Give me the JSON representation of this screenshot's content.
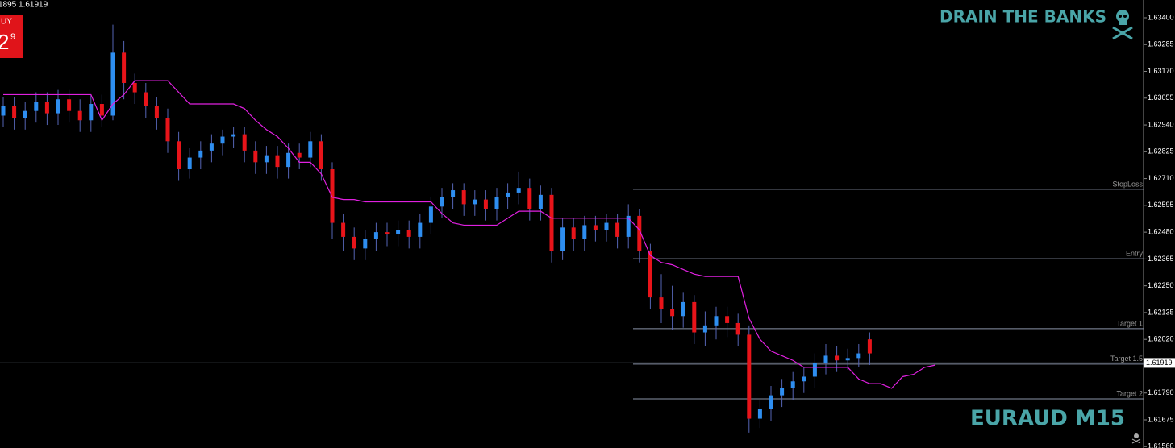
{
  "header": {
    "info": "1895 1.61919",
    "button_label": "UY",
    "button_price": "2",
    "button_sup": "9",
    "brand": "DRAIN THE BANKS",
    "symbol": "EURAUD M15"
  },
  "chart_data": {
    "type": "candlestick",
    "ylim": [
      1.61554,
      1.63476
    ],
    "yticks": [
      {
        "value": 1.634,
        "label": "1.63400"
      },
      {
        "value": 1.63285,
        "label": "1.63285"
      },
      {
        "value": 1.6317,
        "label": "1.63170"
      },
      {
        "value": 1.63055,
        "label": "1.63055"
      },
      {
        "value": 1.6294,
        "label": "1.62940"
      },
      {
        "value": 1.62825,
        "label": "1.62825"
      },
      {
        "value": 1.6271,
        "label": "1.62710"
      },
      {
        "value": 1.62595,
        "label": "1.62595"
      },
      {
        "value": 1.6248,
        "label": "1.62480"
      },
      {
        "value": 1.62365,
        "label": "1.62365"
      },
      {
        "value": 1.6225,
        "label": "1.62250"
      },
      {
        "value": 1.62135,
        "label": "1.62135"
      },
      {
        "value": 1.6202,
        "label": "1.62020"
      },
      {
        "value": 1.6179,
        "label": "1.61790"
      },
      {
        "value": 1.61675,
        "label": "1.61675"
      },
      {
        "value": 1.6156,
        "label": "1.61560"
      }
    ],
    "up_color": "#2e8ef0",
    "down_color": "#e8141a",
    "wick_color": "#5565b5",
    "open": [
      1.6298,
      1.6302,
      1.6297,
      1.63,
      1.6304,
      1.6299,
      1.6305,
      1.63,
      1.6296,
      1.6303,
      1.6298,
      1.6325,
      1.6312,
      1.6308,
      1.6302,
      1.6297,
      1.6287,
      1.6275,
      1.628,
      1.6283,
      1.6286,
      1.6289,
      1.629,
      1.6283,
      1.6278,
      1.6281,
      1.6276,
      1.6282,
      1.628,
      1.6287,
      1.6275,
      1.6252,
      1.6246,
      1.6241,
      1.6245,
      1.6248,
      1.6247,
      1.6249,
      1.6246,
      1.6252,
      1.6259,
      1.6263,
      1.6266,
      1.626,
      1.6262,
      1.6258,
      1.6263,
      1.6265,
      1.6267,
      1.6258,
      1.6264,
      1.624,
      1.625,
      1.6245,
      1.6251,
      1.6249,
      1.6252,
      1.6246,
      1.6255,
      1.624,
      1.622,
      1.6215,
      1.6212,
      1.6218,
      1.6205,
      1.6208,
      1.6212,
      1.6209,
      1.6204,
      1.6168,
      1.6172,
      1.6178,
      1.6181,
      1.6184,
      1.6186,
      1.6192,
      1.6195,
      1.6193,
      1.6194,
      1.6202
    ],
    "high": [
      1.6306,
      1.6306,
      1.6304,
      1.6308,
      1.6308,
      1.6309,
      1.6309,
      1.6305,
      1.6307,
      1.6307,
      1.6337,
      1.633,
      1.6316,
      1.6312,
      1.6306,
      1.6301,
      1.6291,
      1.6284,
      1.6287,
      1.629,
      1.6292,
      1.6293,
      1.6293,
      1.6287,
      1.6285,
      1.6285,
      1.6286,
      1.6286,
      1.6291,
      1.629,
      1.6278,
      1.6256,
      1.625,
      1.6249,
      1.6252,
      1.6252,
      1.6253,
      1.6253,
      1.6256,
      1.6263,
      1.6267,
      1.6269,
      1.6269,
      1.6266,
      1.6266,
      1.6267,
      1.6269,
      1.6274,
      1.6271,
      1.6268,
      1.6267,
      1.6254,
      1.6254,
      1.6255,
      1.6255,
      1.6256,
      1.6256,
      1.626,
      1.6258,
      1.6243,
      1.623,
      1.6225,
      1.6222,
      1.6221,
      1.6214,
      1.6216,
      1.6216,
      1.6213,
      1.6208,
      1.6176,
      1.6182,
      1.6185,
      1.6188,
      1.619,
      1.6196,
      1.62,
      1.6199,
      1.6198,
      1.62,
      1.6205
    ],
    "low": [
      1.6293,
      1.6292,
      1.6292,
      1.6295,
      1.6294,
      1.6294,
      1.6295,
      1.6291,
      1.6291,
      1.6293,
      1.6296,
      1.6305,
      1.6303,
      1.6297,
      1.6292,
      1.6282,
      1.627,
      1.6271,
      1.6275,
      1.6278,
      1.6281,
      1.6284,
      1.6278,
      1.6273,
      1.6273,
      1.6271,
      1.6271,
      1.6275,
      1.6276,
      1.627,
      1.6245,
      1.624,
      1.6236,
      1.6236,
      1.624,
      1.6242,
      1.6242,
      1.6241,
      1.6241,
      1.6247,
      1.6254,
      1.6258,
      1.6255,
      1.6255,
      1.6253,
      1.6253,
      1.6258,
      1.626,
      1.6253,
      1.6253,
      1.6235,
      1.6236,
      1.624,
      1.624,
      1.6244,
      1.6244,
      1.6241,
      1.6241,
      1.6235,
      1.6215,
      1.6209,
      1.6206,
      1.6207,
      1.62,
      1.6199,
      1.6202,
      1.6203,
      1.6199,
      1.6162,
      1.6164,
      1.6167,
      1.6173,
      1.6176,
      1.6179,
      1.6181,
      1.6187,
      1.6188,
      1.6189,
      1.619,
      1.6191
    ],
    "close": [
      1.6302,
      1.6297,
      1.63,
      1.6304,
      1.6299,
      1.6305,
      1.63,
      1.6296,
      1.6303,
      1.6298,
      1.6325,
      1.6312,
      1.6308,
      1.6302,
      1.6297,
      1.6287,
      1.6275,
      1.628,
      1.6283,
      1.6286,
      1.6289,
      1.629,
      1.6283,
      1.6278,
      1.6281,
      1.6276,
      1.6282,
      1.628,
      1.6287,
      1.6275,
      1.6252,
      1.6246,
      1.6241,
      1.6245,
      1.6248,
      1.6247,
      1.6249,
      1.6246,
      1.6252,
      1.6259,
      1.6263,
      1.6266,
      1.626,
      1.6262,
      1.6258,
      1.6263,
      1.6265,
      1.6267,
      1.6258,
      1.6264,
      1.624,
      1.625,
      1.6245,
      1.6251,
      1.6249,
      1.6252,
      1.6246,
      1.6255,
      1.624,
      1.622,
      1.6215,
      1.6212,
      1.6218,
      1.6205,
      1.6208,
      1.6212,
      1.6209,
      1.6204,
      1.6168,
      1.6172,
      1.6178,
      1.6181,
      1.6184,
      1.6186,
      1.6192,
      1.6195,
      1.6193,
      1.6194,
      1.6196,
      1.6196
    ],
    "trail": {
      "color": "#e020e0",
      "values": [
        1.6307,
        1.6307,
        1.6307,
        1.6307,
        1.6307,
        1.6307,
        1.6307,
        1.6307,
        1.6307,
        1.6296,
        1.6303,
        1.6307,
        1.6313,
        1.6313,
        1.6313,
        1.6313,
        1.6308,
        1.6303,
        1.6303,
        1.6303,
        1.6303,
        1.6303,
        1.6301,
        1.6296,
        1.6292,
        1.6289,
        1.6284,
        1.6278,
        1.6278,
        1.6273,
        1.6263,
        1.6262,
        1.6262,
        1.6261,
        1.6261,
        1.6261,
        1.6261,
        1.6261,
        1.6261,
        1.6261,
        1.6256,
        1.6252,
        1.6251,
        1.6251,
        1.6251,
        1.6251,
        1.6254,
        1.6257,
        1.6257,
        1.6257,
        1.6254,
        1.6254,
        1.6254,
        1.6254,
        1.6254,
        1.6254,
        1.6254,
        1.6254,
        1.6249,
        1.6238,
        1.6235,
        1.6234,
        1.6232,
        1.623,
        1.6229,
        1.6229,
        1.6229,
        1.6229,
        1.6211,
        1.6202,
        1.6197,
        1.6195,
        1.6193,
        1.619,
        1.619,
        1.619,
        1.619,
        1.619,
        1.6185,
        1.6183,
        1.6183,
        1.6181,
        1.6186,
        1.6187,
        1.619,
        1.6191
      ]
    },
    "levels": [
      {
        "name": "StopLoss",
        "value": 1.62664
      },
      {
        "name": "Entry",
        "value": 1.62366
      },
      {
        "name": "Target 1",
        "value": 1.62066
      },
      {
        "name": "Target 1.5",
        "value": 1.61914
      },
      {
        "name": "Target 2",
        "value": 1.61765
      }
    ],
    "level_color": "#8a93a8",
    "bid": 1.61919
  }
}
